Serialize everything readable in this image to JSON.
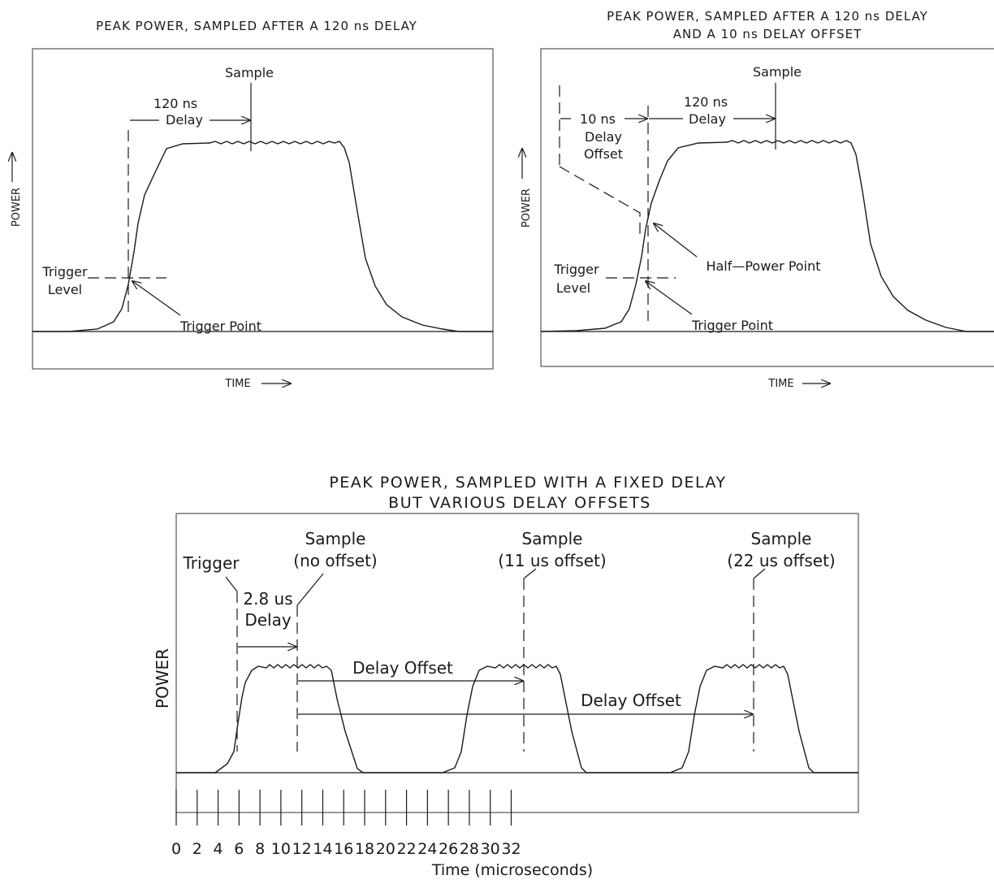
{
  "panel_a": {
    "title": "PEAK POWER, SAMPLED AFTER A 120 ns DELAY",
    "ylabel": "POWER",
    "xlabel": "TIME",
    "sample": "Sample",
    "delay_value": "120 ns",
    "delay_word": "Delay",
    "trigger_level_1": "Trigger",
    "trigger_level_2": "Level",
    "trigger_point": "Trigger Point"
  },
  "panel_b": {
    "title_line1": "PEAK POWER, SAMPLED AFTER A 120 ns DELAY",
    "title_line2": "AND A 10 ns DELAY OFFSET",
    "ylabel": "POWER",
    "xlabel": "TIME",
    "sample": "Sample",
    "offset_value": "10 ns",
    "offset_word1": "Delay",
    "offset_word2": "Offset",
    "delay_value": "120 ns",
    "delay_word": "Delay",
    "half_power": "Half—Power Point",
    "trigger_level_1": "Trigger",
    "trigger_level_2": "Level",
    "trigger_point": "Trigger Point"
  },
  "panel_c": {
    "title_line1": "PEAK POWER, SAMPLED WITH A FIXED DELAY",
    "title_line2": "BUT VARIOUS DELAY OFFSETS",
    "ylabel": "POWER",
    "xlabel": "Time (microseconds)",
    "trigger": "Trigger",
    "delay_value": "2.8 us",
    "delay_word": "Delay",
    "sample_1a": "Sample",
    "sample_1b": "(no offset)",
    "sample_2a": "Sample",
    "sample_2b": "(11 us offset)",
    "sample_3a": "Sample",
    "sample_3b": "(22 us offset)",
    "offset_1": "Delay Offset",
    "offset_2": "Delay Offset",
    "ticks": [
      "0",
      "2",
      "4",
      "6",
      "8",
      "10",
      "12",
      "14",
      "16",
      "18",
      "20",
      "22",
      "24",
      "26",
      "28",
      "30",
      "32"
    ]
  }
}
